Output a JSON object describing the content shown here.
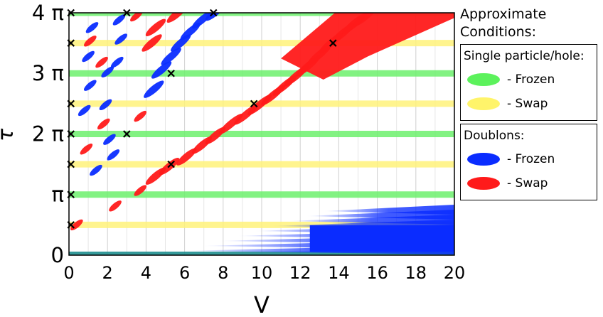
{
  "chart_data": {
    "type": "scatter",
    "xlabel": "V",
    "ylabel": "τ",
    "xlim": [
      0,
      20
    ],
    "ylim": [
      0,
      12.566
    ],
    "x_ticks": [
      0,
      2,
      4,
      6,
      8,
      10,
      12,
      14,
      16,
      18,
      20
    ],
    "y_ticks": [
      {
        "value": 0,
        "label": "0"
      },
      {
        "value": 3.1416,
        "label": "π"
      },
      {
        "value": 6.2832,
        "label": "2 π"
      },
      {
        "value": 9.4248,
        "label": "3 π"
      },
      {
        "value": 12.566,
        "label": "4 π"
      }
    ],
    "grid": true,
    "horizontal_bands": [
      {
        "y": 0.0,
        "color": "#1f8f8f",
        "kind": "baseline"
      },
      {
        "y": 1.5708,
        "color": "#fff27a",
        "kind": "Swap"
      },
      {
        "y": 3.1416,
        "color": "#6cf06c",
        "kind": "Frozen"
      },
      {
        "y": 4.7124,
        "color": "#fff27a",
        "kind": "Swap"
      },
      {
        "y": 6.2832,
        "color": "#6cf06c",
        "kind": "Frozen"
      },
      {
        "y": 7.854,
        "color": "#fff27a",
        "kind": "Swap"
      },
      {
        "y": 9.4248,
        "color": "#6cf06c",
        "kind": "Frozen"
      },
      {
        "y": 10.9956,
        "color": "#fff27a",
        "kind": "Swap"
      },
      {
        "y": 12.566,
        "color": "#6cf06c",
        "kind": "Frozen"
      }
    ],
    "series": [
      {
        "name": "Frozen",
        "color": "#0a2cff",
        "points": [
          {
            "x": 1.4,
            "y": 4.4
          },
          {
            "x": 0.8,
            "y": 7.5
          },
          {
            "x": 1.1,
            "y": 8.8
          },
          {
            "x": 1.0,
            "y": 10.3
          },
          {
            "x": 1.2,
            "y": 11.8
          },
          {
            "x": 2.3,
            "y": 5.2
          },
          {
            "x": 2.1,
            "y": 6.0
          },
          {
            "x": 1.9,
            "y": 7.8
          },
          {
            "x": 2.0,
            "y": 9.5
          },
          {
            "x": 2.5,
            "y": 10.0
          },
          {
            "x": 2.7,
            "y": 11.2
          },
          {
            "x": 2.6,
            "y": 12.2
          },
          {
            "x": 4.4,
            "y": 8.6
          },
          {
            "x": 4.8,
            "y": 9.6
          },
          {
            "x": 5.3,
            "y": 10.3
          },
          {
            "x": 5.8,
            "y": 11.0
          },
          {
            "x": 6.3,
            "y": 11.6
          },
          {
            "x": 6.9,
            "y": 12.2
          },
          {
            "x": 7.6,
            "y": 12.6
          }
        ]
      },
      {
        "name": "Swap",
        "color": "#ff1a1a",
        "points": [
          {
            "x": 0.4,
            "y": 1.57
          },
          {
            "x": 2.4,
            "y": 2.55
          },
          {
            "x": 3.7,
            "y": 3.35
          },
          {
            "x": 4.5,
            "y": 4.1
          },
          {
            "x": 5.2,
            "y": 4.6
          },
          {
            "x": 6.1,
            "y": 5.1
          },
          {
            "x": 6.9,
            "y": 5.7
          },
          {
            "x": 7.6,
            "y": 6.2
          },
          {
            "x": 8.4,
            "y": 6.8
          },
          {
            "x": 9.2,
            "y": 7.3
          },
          {
            "x": 9.9,
            "y": 7.8
          },
          {
            "x": 10.6,
            "y": 8.3
          },
          {
            "x": 11.2,
            "y": 8.8
          },
          {
            "x": 11.8,
            "y": 9.3
          },
          {
            "x": 12.4,
            "y": 9.8
          },
          {
            "x": 13.0,
            "y": 10.4
          },
          {
            "x": 13.6,
            "y": 11.0
          },
          {
            "x": 14.2,
            "y": 11.5
          },
          {
            "x": 14.8,
            "y": 12.0
          },
          {
            "x": 15.4,
            "y": 12.4
          },
          {
            "x": 1.8,
            "y": 6.8
          },
          {
            "x": 1.7,
            "y": 10.0
          },
          {
            "x": 1.1,
            "y": 11.1
          },
          {
            "x": 3.7,
            "y": 7.2
          },
          {
            "x": 4.3,
            "y": 11.0
          },
          {
            "x": 4.5,
            "y": 11.8
          },
          {
            "x": 5.6,
            "y": 12.5
          },
          {
            "x": 0.9,
            "y": 5.5
          },
          {
            "x": 3.5,
            "y": 12.4
          }
        ]
      }
    ],
    "markers_x": [
      {
        "x": 0.1,
        "y": 1.57
      },
      {
        "x": 0.1,
        "y": 3.1416
      },
      {
        "x": 0.1,
        "y": 4.7124
      },
      {
        "x": 0.1,
        "y": 6.2832
      },
      {
        "x": 0.1,
        "y": 7.854
      },
      {
        "x": 0.1,
        "y": 10.9956
      },
      {
        "x": 0.1,
        "y": 12.566
      },
      {
        "x": 3.0,
        "y": 12.566
      },
      {
        "x": 7.5,
        "y": 12.566
      },
      {
        "x": 5.3,
        "y": 9.4248
      },
      {
        "x": 3.0,
        "y": 6.2832
      },
      {
        "x": 9.6,
        "y": 7.854
      },
      {
        "x": 13.7,
        "y": 10.9956
      },
      {
        "x": 5.3,
        "y": 4.7124
      }
    ]
  },
  "legend": {
    "title": "Approximate Conditions:",
    "groups": [
      {
        "title": "Single particle/hole:",
        "items": [
          {
            "label": "- Frozen",
            "color": "#5cf25c"
          },
          {
            "label": "- Swap",
            "color": "#fff46a"
          }
        ]
      },
      {
        "title": "Doublons:",
        "items": [
          {
            "label": "- Frozen",
            "color": "#0a2cff"
          },
          {
            "label": "- Swap",
            "color": "#ff1a1a"
          }
        ]
      }
    ]
  }
}
